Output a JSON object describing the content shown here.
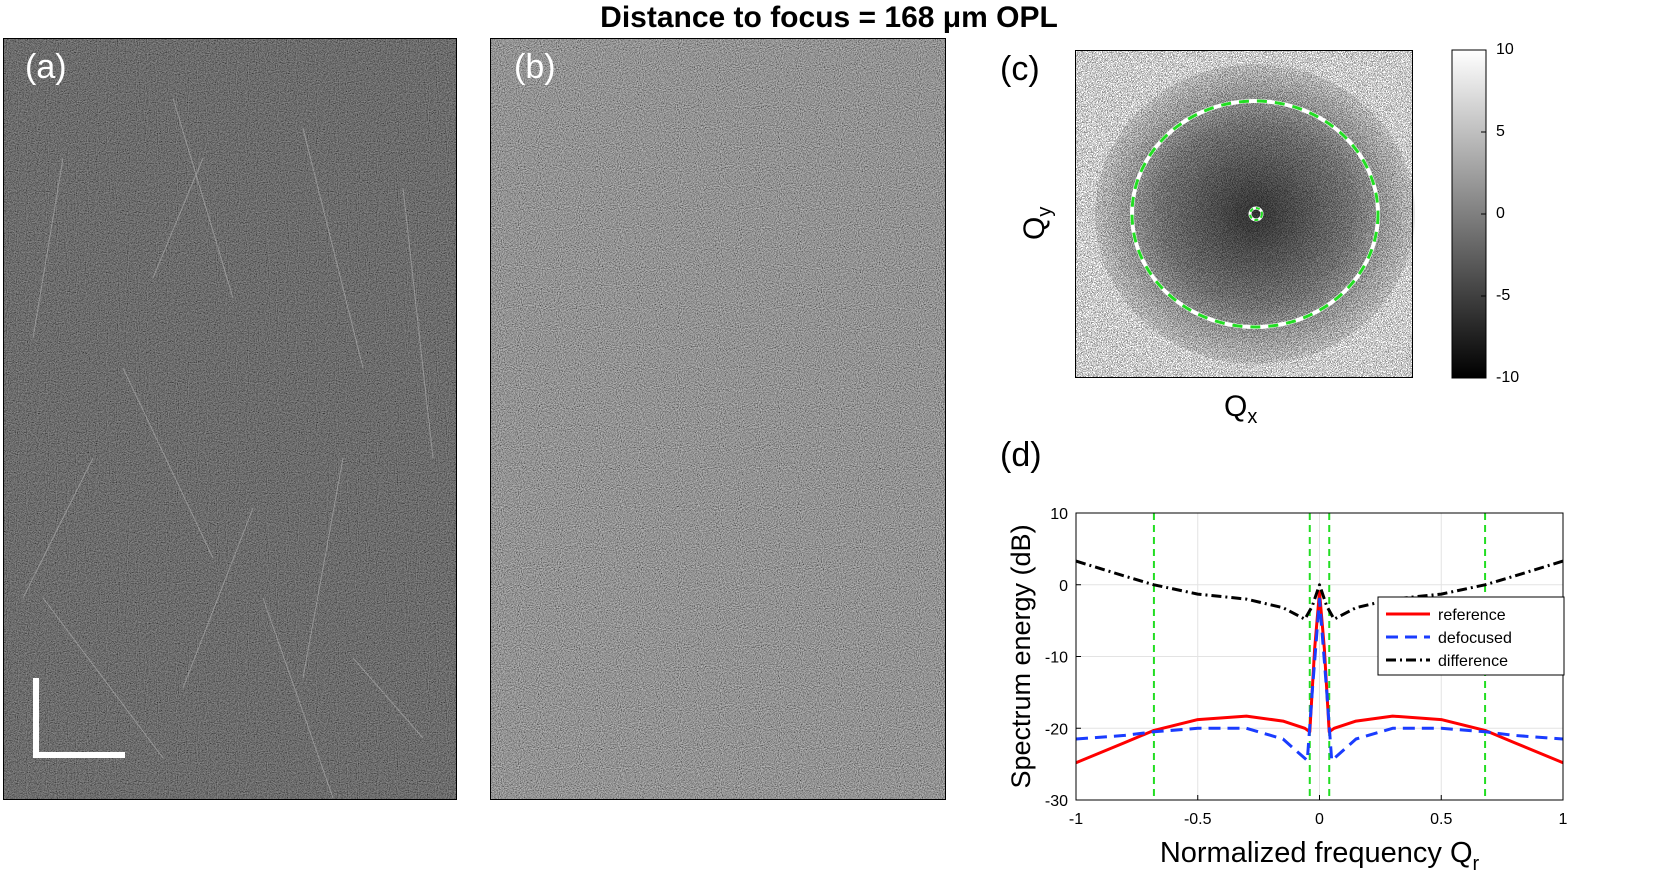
{
  "figure": {
    "title": "Distance to focus = 168 μm OPL"
  },
  "panels": {
    "a": {
      "label": "(a)"
    },
    "b": {
      "label": "(b)"
    },
    "c": {
      "label": "(c)",
      "xlabel": "Q",
      "xlabel_sub": "x",
      "ylabel": "Q",
      "ylabel_sub": "y",
      "colorbar_ticks": [
        "10",
        "5",
        "0",
        "-5",
        "-10"
      ]
    },
    "d": {
      "label": "(d)"
    }
  },
  "chart_data": {
    "type": "line",
    "title": "",
    "xlabel": "Normalized frequency Q",
    "xlabel_sub": "r",
    "ylabel": "Spectrum energy (dB)",
    "xlim": [
      -1,
      1
    ],
    "ylim": [
      -30,
      10
    ],
    "xticks": [
      -1,
      -0.5,
      0,
      0.5,
      1
    ],
    "xtick_labels": [
      "-1",
      "-0.5",
      "0",
      "0.5",
      "1"
    ],
    "yticks": [
      -30,
      -20,
      -10,
      0,
      10
    ],
    "ytick_labels": [
      "-30",
      "-20",
      "-10",
      "0",
      "10"
    ],
    "grid": true,
    "legend_position": "right",
    "vlines": [
      -0.68,
      -0.04,
      0.04,
      0.68
    ],
    "vline_color": "#22dd22",
    "series": [
      {
        "name": "reference",
        "color": "#ff0000",
        "dash": "solid",
        "x": [
          -1,
          -0.8,
          -0.68,
          -0.5,
          -0.3,
          -0.15,
          -0.06,
          -0.04,
          -0.02,
          0,
          0.02,
          0.04,
          0.06,
          0.15,
          0.3,
          0.5,
          0.68,
          0.8,
          1
        ],
        "y": [
          -24.8,
          -22,
          -20.3,
          -18.8,
          -18.3,
          -19,
          -20,
          -20.5,
          -9,
          -1,
          -9,
          -20.5,
          -20,
          -19,
          -18.3,
          -18.8,
          -20.3,
          -22,
          -24.8
        ]
      },
      {
        "name": "defocused",
        "color": "#1a3cff",
        "dash": "dashed",
        "x": [
          -1,
          -0.8,
          -0.68,
          -0.5,
          -0.3,
          -0.15,
          -0.1,
          -0.05,
          -0.03,
          0,
          0.03,
          0.05,
          0.1,
          0.15,
          0.3,
          0.5,
          0.68,
          0.8,
          1
        ],
        "y": [
          -21.5,
          -21,
          -20.5,
          -20,
          -20,
          -21.5,
          -23,
          -24.5,
          -15,
          -2,
          -15,
          -24.5,
          -23,
          -21.5,
          -20,
          -20,
          -20.5,
          -21,
          -21.5
        ]
      },
      {
        "name": "difference",
        "color": "#000000",
        "dash": "dashdot",
        "x": [
          -1,
          -0.8,
          -0.68,
          -0.5,
          -0.3,
          -0.15,
          -0.06,
          -0.03,
          0,
          0.03,
          0.06,
          0.15,
          0.3,
          0.5,
          0.68,
          0.8,
          1
        ],
        "y": [
          3.3,
          1.2,
          0,
          -1.3,
          -2,
          -3.2,
          -4.8,
          -3,
          0,
          -3,
          -4.8,
          -3.2,
          -2,
          -1.3,
          0,
          1.2,
          3.3
        ]
      }
    ]
  }
}
